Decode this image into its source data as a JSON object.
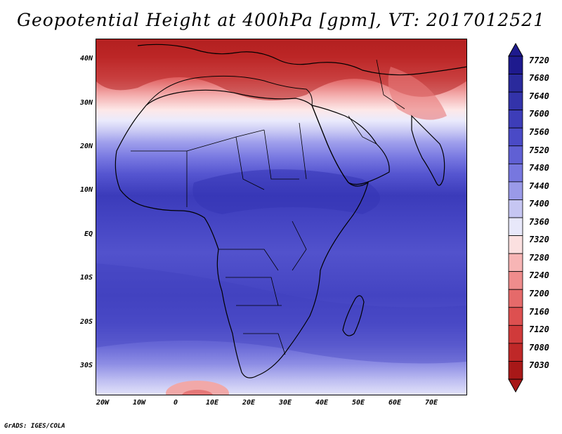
{
  "title": "Geopotential Height at 400hPa [gpm], VT: 2017012521",
  "lat_labels": [
    "40N",
    "30N",
    "20N",
    "10N",
    "EQ",
    "10S",
    "20S",
    "30S"
  ],
  "lon_labels": [
    "20W",
    "10W",
    "0",
    "10E",
    "20E",
    "30E",
    "40E",
    "50E",
    "60E",
    "70E"
  ],
  "colorbar": {
    "levels": [
      "7720",
      "7680",
      "7640",
      "7600",
      "7560",
      "7520",
      "7480",
      "7440",
      "7400",
      "7360",
      "7320",
      "7280",
      "7240",
      "7200",
      "7160",
      "7120",
      "7080",
      "7030"
    ],
    "colors": [
      "#1e1a8e",
      "#2a2a9c",
      "#3333aa",
      "#3d3db8",
      "#4a4ac6",
      "#6060d4",
      "#7777df",
      "#9a9ae8",
      "#c6c6f2",
      "#e8e8fa",
      "#fbe0e0",
      "#f7b5b5",
      "#ef8c8c",
      "#e56a6a",
      "#dd5050",
      "#d03a3a",
      "#bf2828",
      "#a81818"
    ]
  },
  "footer": "GrADS: IGES/COLA"
}
